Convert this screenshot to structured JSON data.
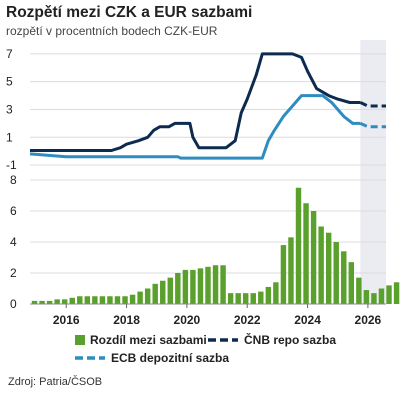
{
  "title": "Rozpětí mezi CZK a EUR sazbami",
  "subtitle": "rozpětí v procentních bodech CZK-EUR",
  "source": "Zdroj: Patria/ČSOB",
  "colors": {
    "cnb": "#0d2a4f",
    "ecb": "#2e8cc0",
    "spread": "#5aa02c",
    "forecast_band": "#ebebf2",
    "grid": "#dcdcdc"
  },
  "chart_data": [
    {
      "type": "line",
      "x_ticks": [
        "2016",
        "2018",
        "2020",
        "2022",
        "2024",
        "2026"
      ],
      "y_ticks": [
        "7",
        "5",
        "3",
        "1",
        "-1"
      ],
      "ylim": [
        -1.5,
        8
      ],
      "forecast_from": "2025.75",
      "series": [
        {
          "name": "ČNB repo sazba",
          "style": "solid-then-dashed",
          "points": [
            [
              2014.8,
              0.05
            ],
            [
              2017.5,
              0.05
            ],
            [
              2017.8,
              0.25
            ],
            [
              2018.0,
              0.5
            ],
            [
              2018.4,
              0.75
            ],
            [
              2018.7,
              1.0
            ],
            [
              2018.9,
              1.5
            ],
            [
              2019.1,
              1.75
            ],
            [
              2019.4,
              1.75
            ],
            [
              2019.6,
              2.0
            ],
            [
              2020.1,
              2.0
            ],
            [
              2020.2,
              1.0
            ],
            [
              2020.4,
              0.25
            ],
            [
              2021.3,
              0.25
            ],
            [
              2021.6,
              0.75
            ],
            [
              2021.8,
              2.75
            ],
            [
              2022.0,
              3.75
            ],
            [
              2022.3,
              5.5
            ],
            [
              2022.5,
              7.0
            ],
            [
              2023.5,
              7.0
            ],
            [
              2023.8,
              6.75
            ],
            [
              2024.0,
              5.75
            ],
            [
              2024.3,
              4.5
            ],
            [
              2024.7,
              4.0
            ],
            [
              2025.0,
              3.75
            ],
            [
              2025.4,
              3.5
            ],
            [
              2025.75,
              3.5
            ],
            [
              2026.0,
              3.25
            ],
            [
              2026.6,
              3.25
            ]
          ]
        },
        {
          "name": "ECB depozitní sazba",
          "style": "solid-then-dashed",
          "points": [
            [
              2014.8,
              -0.2
            ],
            [
              2016.0,
              -0.4
            ],
            [
              2019.7,
              -0.4
            ],
            [
              2019.8,
              -0.5
            ],
            [
              2022.5,
              -0.5
            ],
            [
              2022.7,
              0.75
            ],
            [
              2022.9,
              1.5
            ],
            [
              2023.2,
              2.5
            ],
            [
              2023.5,
              3.25
            ],
            [
              2023.8,
              4.0
            ],
            [
              2024.5,
              4.0
            ],
            [
              2024.8,
              3.5
            ],
            [
              2025.2,
              2.5
            ],
            [
              2025.5,
              2.0
            ],
            [
              2025.75,
              2.0
            ],
            [
              2026.0,
              1.75
            ],
            [
              2026.6,
              1.75
            ]
          ]
        }
      ]
    },
    {
      "type": "bar",
      "name": "Rozdíl mezi sazbami",
      "y_ticks": [
        "8",
        "6",
        "4",
        "2",
        "0"
      ],
      "ylim": [
        0,
        8
      ],
      "x_start": 2014.95,
      "x_step": 0.25,
      "forecast_from_index": 42,
      "values": [
        0.2,
        0.2,
        0.2,
        0.3,
        0.3,
        0.4,
        0.5,
        0.5,
        0.5,
        0.5,
        0.5,
        0.5,
        0.5,
        0.6,
        0.8,
        1.0,
        1.3,
        1.5,
        1.7,
        2.0,
        2.2,
        2.2,
        2.3,
        2.4,
        2.5,
        2.5,
        0.7,
        0.7,
        0.7,
        0.7,
        0.8,
        1.1,
        1.4,
        3.8,
        4.3,
        7.5,
        6.5,
        6.0,
        5.0,
        4.6,
        4.0,
        3.4,
        2.7,
        1.7,
        0.9,
        0.7,
        1.0,
        1.2,
        1.4,
        1.5,
        1.8,
        1.6,
        1.5,
        1.5
      ]
    }
  ],
  "legend": {
    "spread": "Rozdíl mezi sazbami",
    "cnb": "ČNB repo sazba",
    "ecb": "ECB depozitní sazba"
  }
}
